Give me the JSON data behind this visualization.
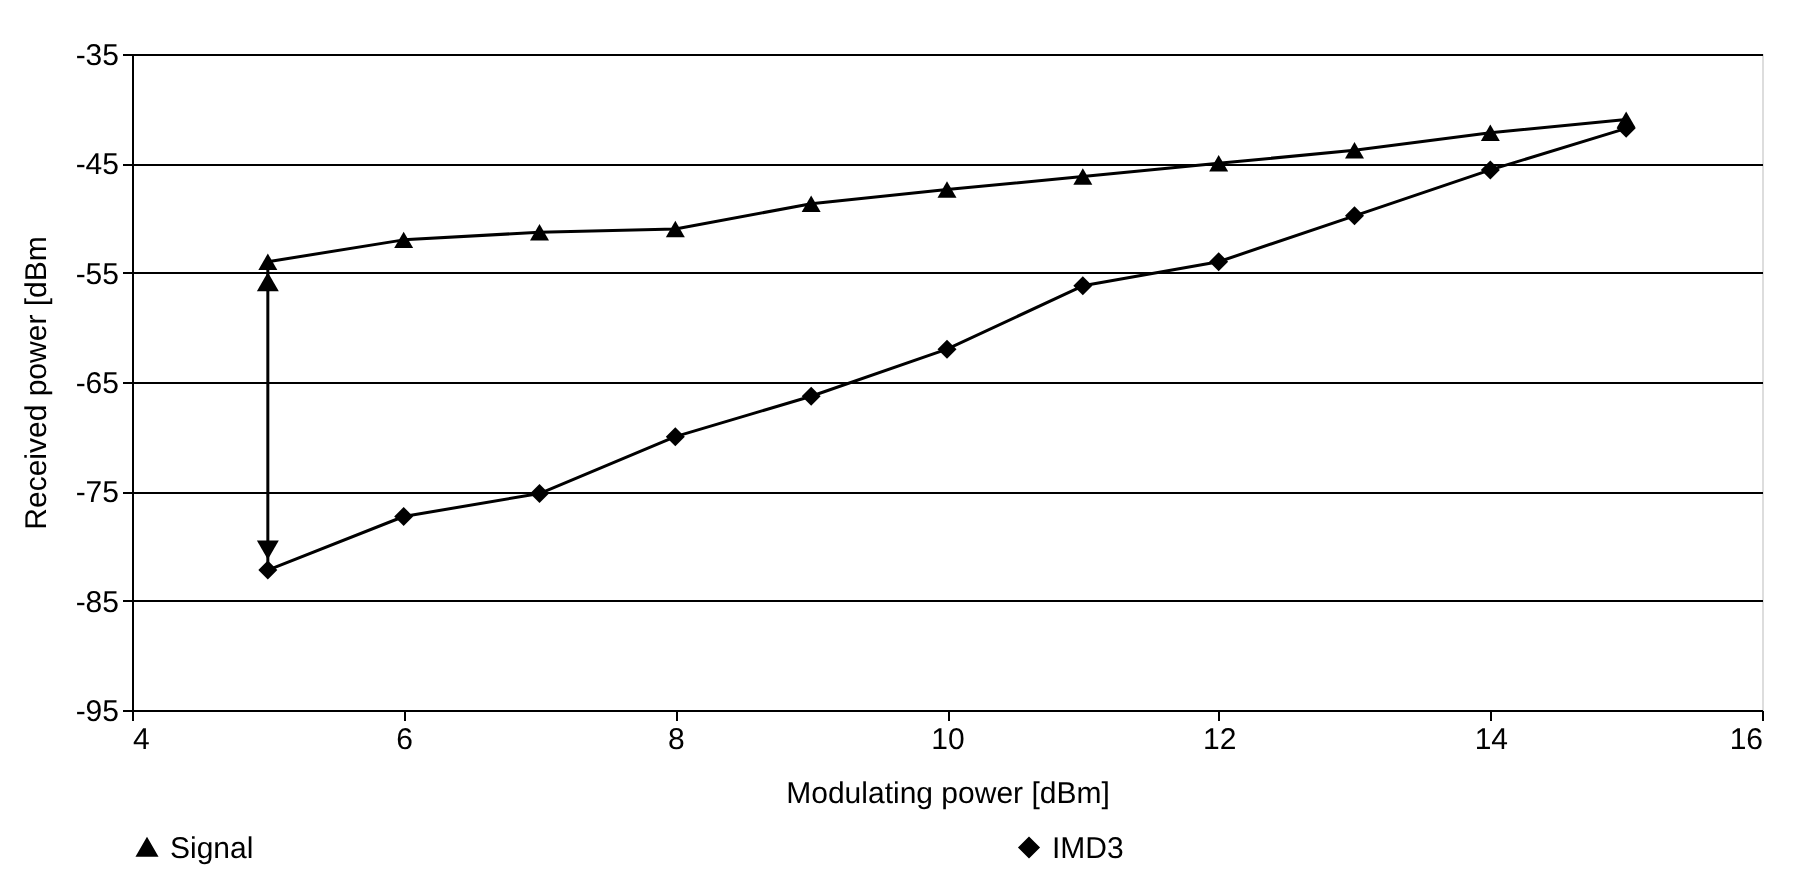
{
  "chart_data": {
    "type": "line",
    "xlabel": "Modulating power [dBm]",
    "ylabel": "Received power [dBm",
    "x": [
      5,
      6,
      7,
      8,
      9,
      10,
      11,
      12,
      13,
      14,
      15
    ],
    "series": [
      {
        "name": "Signal",
        "color": "#000000",
        "marker": "triangle",
        "values": [
          -54.0,
          -52.0,
          -51.3,
          -51.0,
          -48.7,
          -47.4,
          -46.2,
          -45.0,
          -43.8,
          -42.2,
          -41.0
        ]
      },
      {
        "name": "IMD3",
        "color": "#000000",
        "marker": "diamond",
        "values": [
          -82.2,
          -77.3,
          -75.2,
          -70.0,
          -66.3,
          -62.0,
          -56.2,
          -54.0,
          -49.8,
          -45.6,
          -41.8
        ]
      }
    ],
    "xlim": [
      4,
      16
    ],
    "xticks": [
      4,
      6,
      8,
      10,
      12,
      14,
      16
    ],
    "ylim": [
      -95,
      -35
    ],
    "yticks": [
      -95,
      -85,
      -75,
      -65,
      -55,
      -45,
      -35
    ],
    "grid": "y",
    "legend": "bottom",
    "line_style": "solid"
  }
}
